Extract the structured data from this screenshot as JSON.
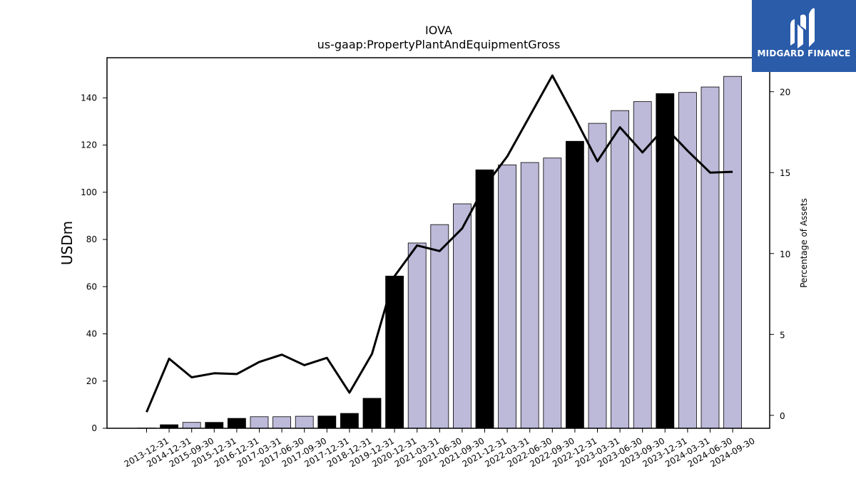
{
  "chart_data": {
    "type": "bar",
    "title": "IOVA",
    "subtitle": "us-gaap:PropertyPlantAndEquipmentGross",
    "ylabel": "USDm",
    "y2label": "Percentage of Assets",
    "ylim": [
      0,
      157
    ],
    "y2lim": [
      -0.8,
      22.1
    ],
    "yticks": [
      0,
      20,
      40,
      60,
      80,
      100,
      120,
      140
    ],
    "y2ticks": [
      0,
      5,
      10,
      15,
      20
    ],
    "categories": [
      "2013-12-31",
      "2014-12-31",
      "2015-09-30",
      "2015-12-31",
      "2016-12-31",
      "2017-03-31",
      "2017-06-30",
      "2017-09-30",
      "2017-12-31",
      "2018-12-31",
      "2019-12-31",
      "2020-12-31",
      "2021-03-31",
      "2021-06-30",
      "2021-09-30",
      "2021-12-31",
      "2022-03-31",
      "2022-06-30",
      "2022-09-30",
      "2022-12-31",
      "2023-03-31",
      "2023-06-30",
      "2023-09-30",
      "2023-12-31",
      "2024-03-31",
      "2024-06-30",
      "2024-09-30"
    ],
    "series": [
      {
        "type": "bar",
        "values": [
          0.1,
          1.5,
          2.5,
          2.5,
          4.2,
          4.9,
          4.9,
          5.1,
          5.2,
          6.3,
          12.7,
          64.5,
          78.5,
          86.3,
          95.1,
          109.5,
          111.6,
          112.6,
          114.5,
          121.6,
          129.2,
          134.6,
          138.4,
          141.8,
          142.3,
          144.6,
          149.1
        ],
        "colors": [
          "black",
          "black",
          "#bcb9d9",
          "black",
          "black",
          "#bcb9d9",
          "#bcb9d9",
          "#bcb9d9",
          "black",
          "black",
          "black",
          "black",
          "#bcb9d9",
          "#bcb9d9",
          "#bcb9d9",
          "black",
          "#bcb9d9",
          "#bcb9d9",
          "#bcb9d9",
          "black",
          "#bcb9d9",
          "#bcb9d9",
          "#bcb9d9",
          "black",
          "#bcb9d9",
          "#bcb9d9",
          "#bcb9d9"
        ]
      },
      {
        "type": "line",
        "axis": "right",
        "values": [
          0.2,
          3.5,
          2.35,
          2.6,
          2.55,
          3.3,
          3.75,
          3.1,
          3.55,
          1.4,
          3.8,
          8.6,
          10.5,
          10.15,
          11.55,
          14.15,
          16.0,
          18.5,
          21.0,
          18.4,
          15.7,
          17.8,
          16.25,
          17.8,
          16.35,
          15.0,
          15.05
        ]
      }
    ],
    "colors": {
      "bar_dark": "#000000",
      "bar_light": "#bcb9d9",
      "line": "#000000"
    }
  },
  "logo": {
    "text": "MIDGARD FINANCE",
    "background": "#2a5caa"
  }
}
